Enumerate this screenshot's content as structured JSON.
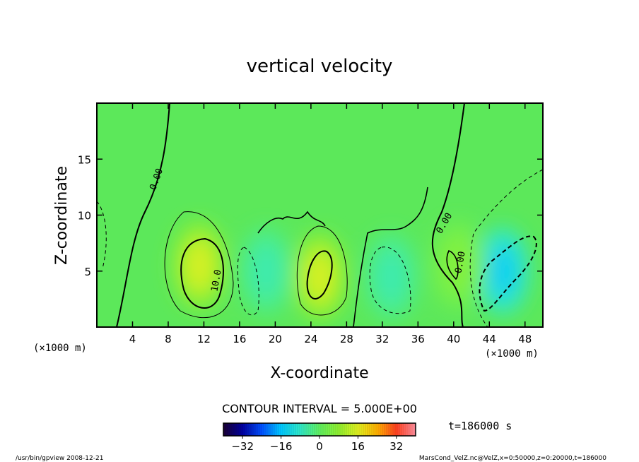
{
  "chart_data": {
    "type": "heatmap",
    "title": "vertical velocity",
    "xlabel": "X-coordinate",
    "ylabel": "Z-coordinate",
    "x_unit": "(×1000 m)",
    "x_unit_right": "(×1000 m)",
    "xlim": [
      0,
      50
    ],
    "ylim": [
      0,
      20
    ],
    "x_ticks": [
      4,
      8,
      12,
      16,
      20,
      24,
      28,
      32,
      36,
      40,
      44,
      48
    ],
    "y_ticks": [
      5,
      10,
      15
    ],
    "contour_labels": [
      "0.00",
      "10.0",
      "0.00",
      "0.00"
    ],
    "contour_interval": "CONTOUR INTERVAL = 5.000E+00",
    "time_label": "t=186000 s",
    "colorbar": {
      "ticks": [
        "−32",
        "−16",
        "0",
        "16",
        "32"
      ],
      "range": [
        -40,
        40
      ],
      "colors": [
        "#1a0033",
        "#0000a0",
        "#0050ff",
        "#00c8ff",
        "#30e8c8",
        "#60f060",
        "#90f030",
        "#e0f020",
        "#ffb000",
        "#ff4020",
        "#ff90a0"
      ]
    },
    "features": [
      {
        "x": 11.5,
        "z": 5.5,
        "value": 15,
        "type": "updraft"
      },
      {
        "x": 25,
        "z": 4.5,
        "value": 15,
        "type": "updraft"
      },
      {
        "x": 19,
        "z": 5,
        "value": -6,
        "type": "downdraft"
      },
      {
        "x": 33,
        "z": 4.5,
        "value": -6,
        "type": "downdraft"
      },
      {
        "x": 45.5,
        "z": 5,
        "value": -14,
        "type": "downdraft"
      },
      {
        "x": 40.5,
        "z": 5.5,
        "value": 6,
        "type": "updraft"
      }
    ]
  },
  "footer": {
    "left": "/usr/bin/gpview   2008-12-21",
    "right": "MarsCond_VelZ.nc@VelZ,x=0:50000,z=0:20000,t=186000"
  }
}
